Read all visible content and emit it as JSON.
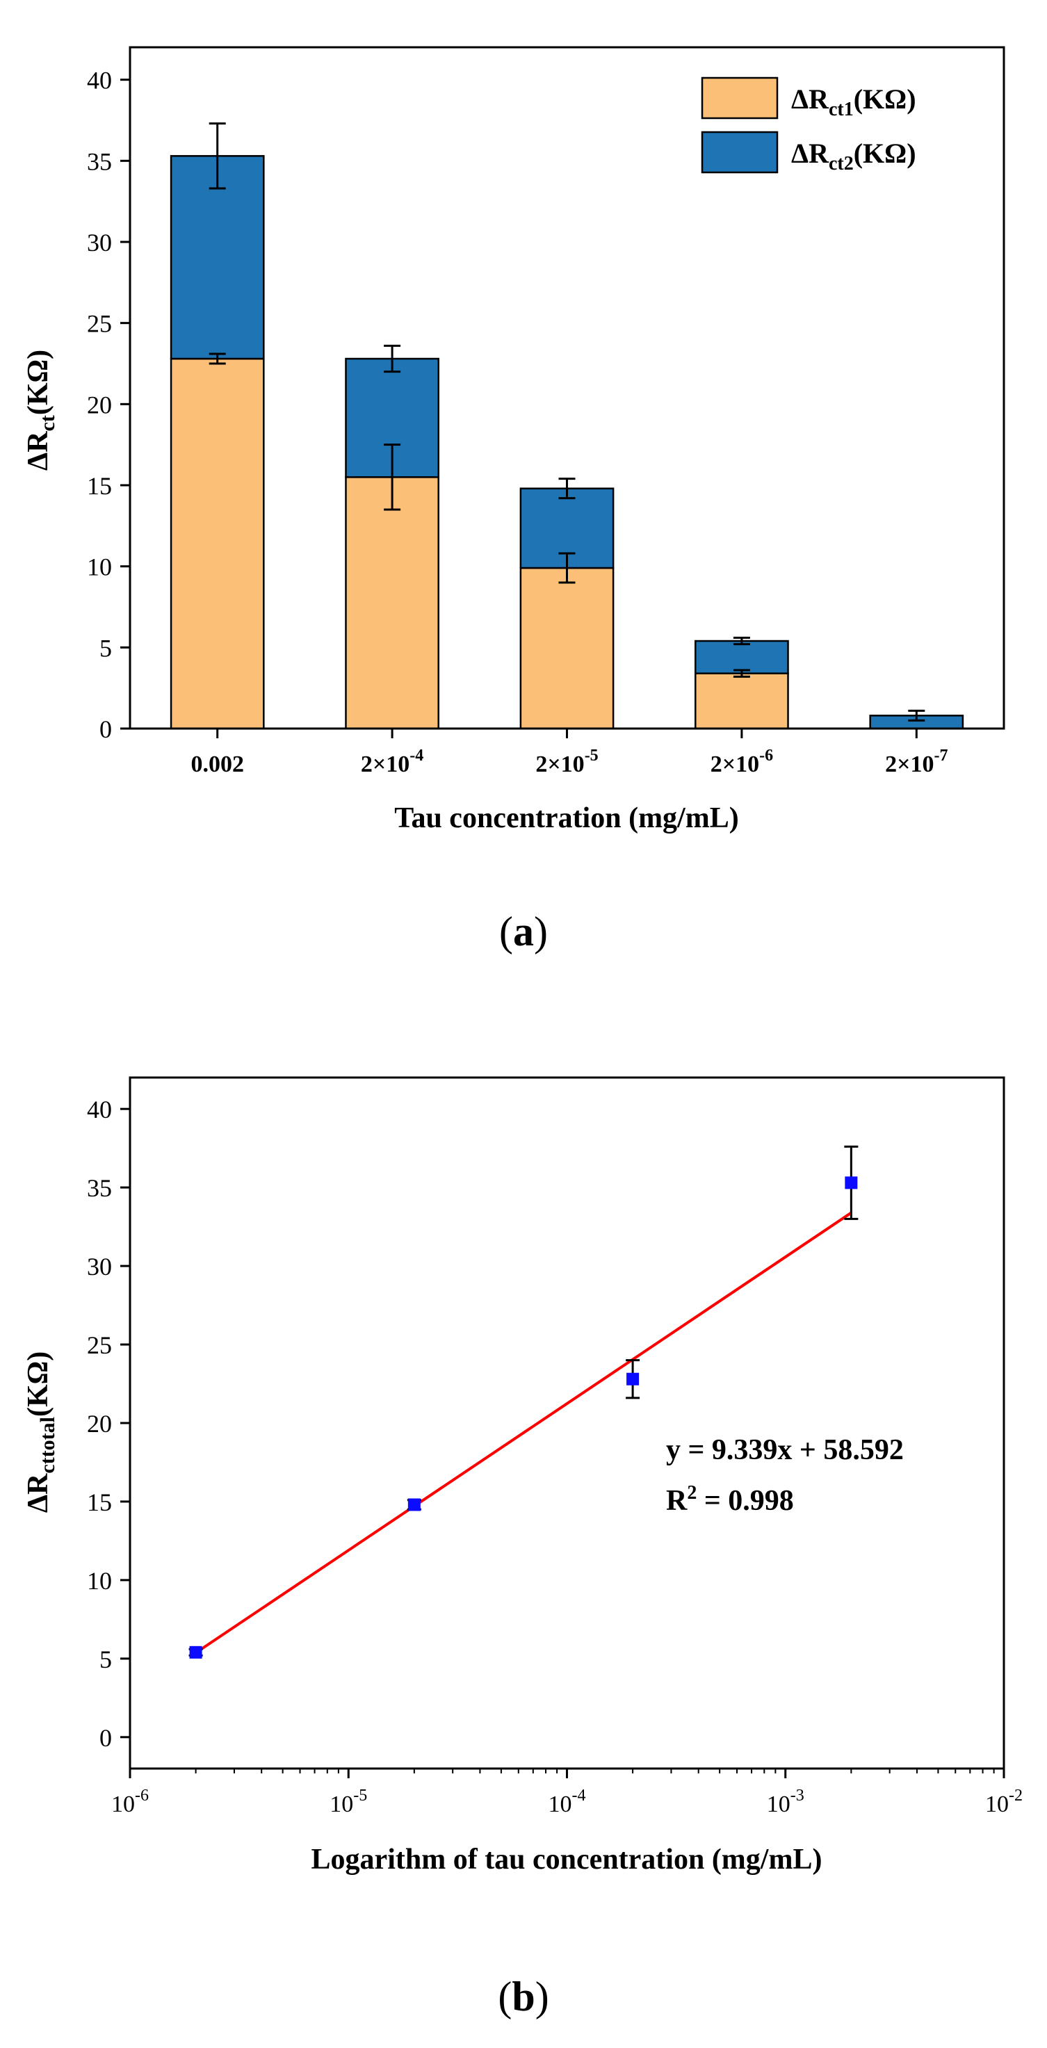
{
  "figure": {
    "panel_a_label": "a",
    "panel_b_label": "b"
  },
  "colors": {
    "rct1": "#fbbf77",
    "rct2": "#1f74b4",
    "point": "#0b0bff",
    "fit": "#ff0000"
  },
  "chart_data": [
    {
      "id": "a",
      "type": "bar",
      "stacked": true,
      "title": "",
      "xlabel": "Tau concentration (mg/mL)",
      "ylabel": "ΔRct(KΩ)",
      "ylabel_main": "ΔR",
      "ylabel_sub": "ct",
      "ylabel_tail": "(KΩ)",
      "ylim": [
        0,
        42
      ],
      "yticks": [
        0,
        5,
        10,
        15,
        20,
        25,
        30,
        35,
        40
      ],
      "categories": [
        "0.002",
        "2×10-4",
        "2×10-5",
        "2×10-6",
        "2×10-7"
      ],
      "category_base": [
        "0.002",
        "2×10",
        "2×10",
        "2×10",
        "2×10"
      ],
      "category_exp": [
        "",
        "-4",
        "-5",
        "-6",
        "-7"
      ],
      "series": [
        {
          "name": "ΔRct1(KΩ)",
          "label_main": "ΔR",
          "label_sub": "ct1",
          "label_tail": "(KΩ)",
          "values": [
            22.8,
            15.5,
            9.9,
            3.4,
            0.0
          ],
          "errors": [
            0.3,
            2.0,
            0.9,
            0.2,
            0.0
          ]
        },
        {
          "name": "ΔRct2(KΩ)",
          "label_main": "ΔR",
          "label_sub": "ct2",
          "label_tail": "(KΩ)",
          "values": [
            12.5,
            7.3,
            4.9,
            2.0,
            0.8
          ],
          "errors": [
            2.0,
            0.8,
            0.6,
            0.2,
            0.3
          ]
        }
      ],
      "legend_position": "top-right",
      "grid": false
    },
    {
      "id": "b",
      "type": "scatter",
      "title": "",
      "xlabel": "Logarithm of tau concentration (mg/mL)",
      "ylabel": "ΔRcttotal(KΩ)",
      "ylabel_main": "ΔR",
      "ylabel_sub": "cttotal",
      "ylabel_tail": "(KΩ)",
      "x_scale": "log",
      "xlim": [
        1e-06,
        0.01
      ],
      "ylim": [
        -2,
        42
      ],
      "yticks": [
        0,
        5,
        10,
        15,
        20,
        25,
        30,
        35,
        40
      ],
      "xticks": [
        1e-06,
        1e-05,
        0.0001,
        0.001,
        0.01
      ],
      "xtick_base": "10",
      "xtick_exp": [
        "-6",
        "-5",
        "-4",
        "-3",
        "-2"
      ],
      "x": [
        2e-06,
        2e-05,
        0.0002,
        0.002
      ],
      "y": [
        5.4,
        14.8,
        22.8,
        35.3
      ],
      "yerr": [
        0.2,
        0.3,
        1.2,
        2.3
      ],
      "fit": {
        "slope": 9.339,
        "intercept": 58.592,
        "x_range": [
          2e-06,
          0.002
        ],
        "equation": "y = 9.339x + 58.592",
        "r2_label": "R",
        "r2_exp": "2",
        "r2_value": " = 0.998"
      },
      "grid": false
    }
  ]
}
